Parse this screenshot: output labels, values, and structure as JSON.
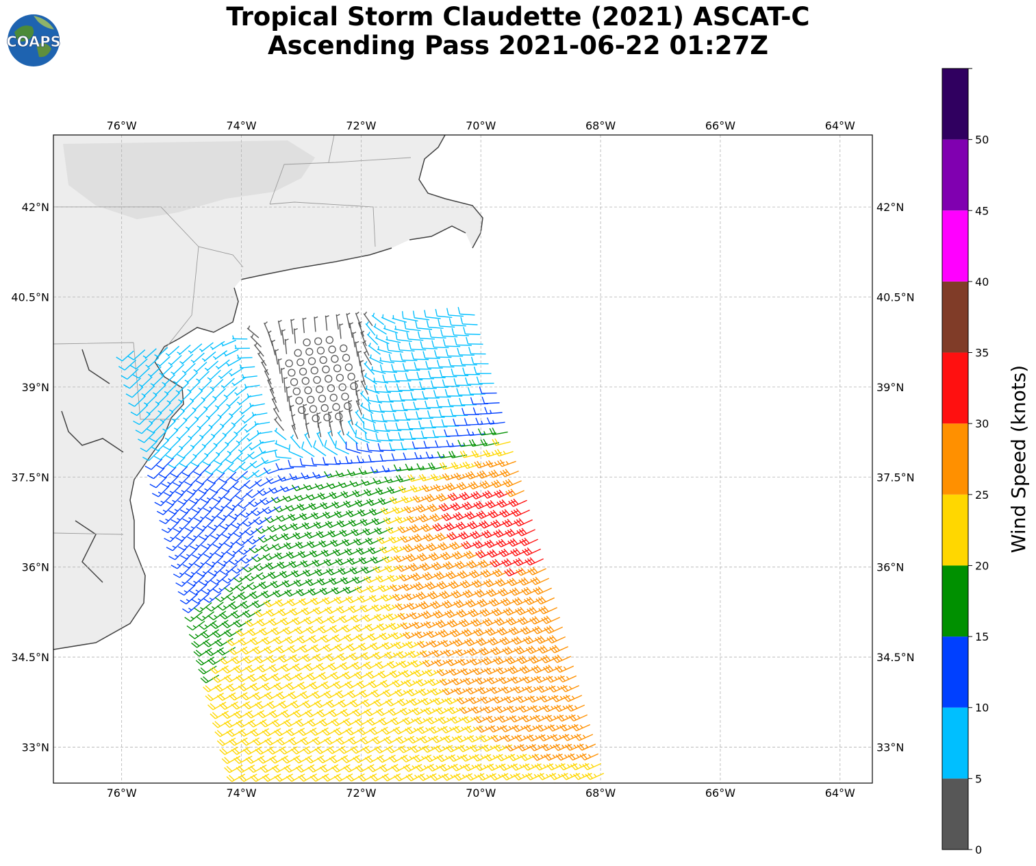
{
  "header": {
    "title_line1": "Tropical Storm Claudette (2021) ASCAT-C",
    "title_line2": "Ascending Pass 2021-06-22 01:27Z",
    "logo_text": "COAPS"
  },
  "map": {
    "lon_range": [
      -77.14,
      -63.46
    ],
    "lat_range": [
      32.4,
      43.2
    ],
    "lon_ticks": [
      {
        "value": -76,
        "label": "76°W"
      },
      {
        "value": -74,
        "label": "74°W"
      },
      {
        "value": -72,
        "label": "72°W"
      },
      {
        "value": -70,
        "label": "70°W"
      },
      {
        "value": -68,
        "label": "68°W"
      },
      {
        "value": -66,
        "label": "66°W"
      },
      {
        "value": -64,
        "label": "64°W"
      }
    ],
    "lat_ticks": [
      {
        "value": 42,
        "label": "42°N"
      },
      {
        "value": 40.5,
        "label": "40.5°N"
      },
      {
        "value": 39,
        "label": "39°N"
      },
      {
        "value": 37.5,
        "label": "37.5°N"
      },
      {
        "value": 36,
        "label": "36°N"
      },
      {
        "value": 34.5,
        "label": "34.5°N"
      },
      {
        "value": 33,
        "label": "33°N"
      }
    ],
    "grid": true,
    "coastline_color": "#404040",
    "land_color": "#ececec",
    "ocean_color": "#ffffff"
  },
  "colorbar": {
    "label": "Wind Speed (knots)",
    "range": [
      0,
      55
    ],
    "ticks": [
      "0",
      "5",
      "10",
      "15",
      "20",
      "25",
      "30",
      "35",
      "40",
      "45",
      "50"
    ],
    "bins": [
      {
        "min": 0,
        "max": 5,
        "color": "#575757"
      },
      {
        "min": 5,
        "max": 10,
        "color": "#00bfff"
      },
      {
        "min": 10,
        "max": 15,
        "color": "#0040ff"
      },
      {
        "min": 15,
        "max": 20,
        "color": "#009000"
      },
      {
        "min": 20,
        "max": 25,
        "color": "#ffd700"
      },
      {
        "min": 25,
        "max": 30,
        "color": "#ff9000"
      },
      {
        "min": 30,
        "max": 35,
        "color": "#ff1010"
      },
      {
        "min": 35,
        "max": 40,
        "color": "#803c28"
      },
      {
        "min": 40,
        "max": 45,
        "color": "#ff00ff"
      },
      {
        "min": 45,
        "max": 50,
        "color": "#8000b0"
      },
      {
        "min": 50,
        "max": 55,
        "color": "#300060"
      }
    ]
  },
  "wind_field": {
    "description_regions": [
      {
        "name": "calm-center",
        "lon": -72.6,
        "lat": 39.0,
        "speed": 2,
        "dir_from": 0
      },
      {
        "name": "coastal-light",
        "lon": -74.5,
        "lat": 38.5,
        "speed": 7,
        "dir_from": 225
      },
      {
        "name": "northeast-light",
        "lon": -71.0,
        "lat": 38.8,
        "speed": 8,
        "dir_from": 270
      },
      {
        "name": "southwest-moderate",
        "lon": -74.8,
        "lat": 37.0,
        "speed": 13,
        "dir_from": 225
      },
      {
        "name": "band-fresh",
        "lon": -72.2,
        "lat": 36.6,
        "speed": 18,
        "dir_from": 245
      },
      {
        "name": "southern-swath",
        "lon": -72.5,
        "lat": 34.5,
        "speed": 22,
        "dir_from": 240
      },
      {
        "name": "east-strong",
        "lon": -70.2,
        "lat": 36.2,
        "speed": 28,
        "dir_from": 245
      },
      {
        "name": "core-gale",
        "lon": -70.0,
        "lat": 36.5,
        "speed": 32,
        "dir_from": 245
      }
    ]
  }
}
